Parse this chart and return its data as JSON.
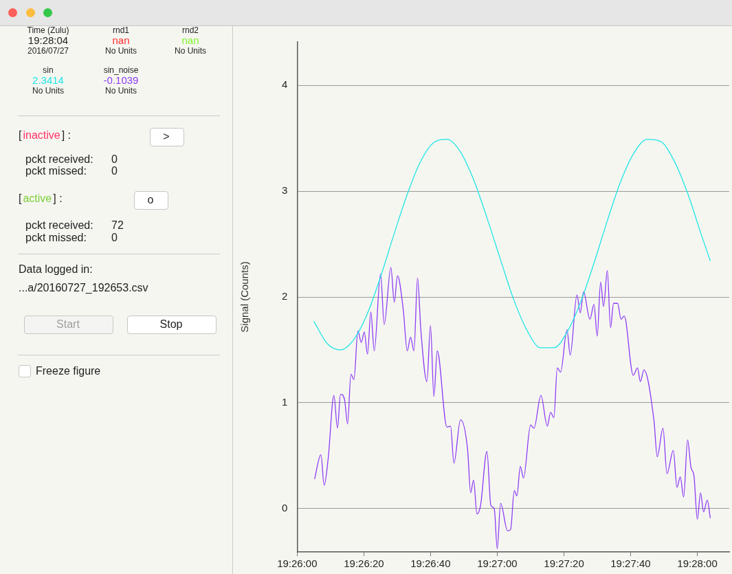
{
  "chart_data": [
    {
      "type": "other",
      "annotations": [
        "Time (Zulu)",
        "19:28:04",
        "2016/07/27",
        "rnd1",
        "nan",
        "No Units",
        "rnd2",
        "nan",
        "No Units",
        "sin",
        "2.3414",
        "No Units",
        "sin_noise",
        "-0.1039",
        "No Units",
        "[",
        "inactive",
        "] :",
        ">",
        "pckt received:",
        "0",
        "pckt missed:",
        "0",
        "[",
        "active",
        "] :",
        "o",
        "pckt received:",
        "72",
        "pckt missed:",
        "0",
        "Data logged in:",
        "...a/20160727_192653.csv",
        "Start",
        "Stop",
        "Freeze figure"
      ],
      "colors": [
        null,
        null,
        null,
        null,
        "#ff2a2a",
        null,
        null,
        "#7cf52a",
        null,
        null,
        "#1ee6e6",
        null,
        null,
        "#8c3cf5",
        null,
        null,
        "#ff3366",
        null,
        null,
        null,
        null,
        null,
        null,
        null,
        "#7ccf3a",
        null,
        null,
        null,
        null,
        null,
        null,
        null,
        null,
        "#a0a0a0",
        null,
        null
      ]
    },
    {
      "type": "line",
      "ylabel": "Signal (Counts)",
      "grid": "y",
      "marker": "none",
      "xlim": [
        19.43333,
        19.46933
      ],
      "ylim": [
        -0.41,
        4.41
      ],
      "xticks": [
        {
          "value": 19.43333,
          "label": "19:26:00"
        },
        {
          "value": 19.43889,
          "label": "19:26:20"
        },
        {
          "value": 19.44444,
          "label": "19:26:40"
        },
        {
          "value": 19.45,
          "label": "19:27:00"
        },
        {
          "value": 19.45556,
          "label": "19:27:20"
        },
        {
          "value": 19.46111,
          "label": "19:27:40"
        },
        {
          "value": 19.46667,
          "label": "19:28:00"
        }
      ],
      "yticks": [
        0,
        1,
        2,
        3,
        4
      ],
      "series": [
        {
          "color": "#1ee6e6",
          "x": [
            19.43472,
            19.43583,
            19.43694,
            19.43806,
            19.43917,
            19.44028,
            19.44139,
            19.4425,
            19.44361,
            19.44472,
            19.44583,
            19.44694,
            19.44806,
            19.44917,
            19.45028,
            19.45139,
            19.4525,
            19.45361,
            19.45472,
            19.45583,
            19.45694,
            19.45806,
            19.45917,
            19.46028,
            19.46139,
            19.4625,
            19.46361,
            19.46472,
            19.46583,
            19.46694,
            19.46775
          ],
          "values": [
            1.77,
            1.56,
            1.5,
            1.6,
            1.84,
            2.19,
            2.59,
            2.97,
            3.28,
            3.46,
            3.49,
            3.37,
            3.1,
            2.74,
            2.35,
            1.97,
            1.68,
            1.52,
            1.52,
            1.67,
            1.95,
            2.32,
            2.72,
            3.09,
            3.36,
            3.49,
            3.47,
            3.29,
            2.99,
            2.61,
            2.34
          ]
        },
        {
          "color": "#8c3cf5",
          "x": [
            19.43478,
            19.43531,
            19.43558,
            19.43592,
            19.43639,
            19.43669,
            19.43694,
            19.43728,
            19.43753,
            19.43781,
            19.43806,
            19.43839,
            19.43867,
            19.43892,
            19.43919,
            19.43947,
            19.43975,
            19.44028,
            19.44058,
            19.44114,
            19.44142,
            19.44169,
            19.44217,
            19.4425,
            19.44278,
            19.44306,
            19.44336,
            19.44364,
            19.44414,
            19.44444,
            19.44472,
            19.445,
            19.44581,
            19.44611,
            19.44639,
            19.44694,
            19.44753,
            19.44778,
            19.44803,
            19.44831,
            19.44861,
            19.44914,
            19.44947,
            19.44975,
            19.45,
            19.45028,
            19.45086,
            19.45111,
            19.45142,
            19.45164,
            19.45192,
            19.45219,
            19.45278,
            19.45306,
            19.45364,
            19.45417,
            19.45444,
            19.45472,
            19.455,
            19.45528,
            19.45581,
            19.45608,
            19.45664,
            19.45692,
            19.45719,
            19.45772,
            19.45806,
            19.45833,
            19.45861,
            19.45886,
            19.45917,
            19.45944,
            19.45969,
            19.46003,
            19.46031,
            19.46058,
            19.46133,
            19.46169,
            19.46192,
            19.46222,
            19.46306,
            19.46333,
            19.46381,
            19.46414,
            19.46467,
            19.46497,
            19.46525,
            19.46553,
            19.46586,
            19.46614,
            19.46639,
            19.46667,
            19.46694,
            19.46719,
            19.4675,
            19.46775
          ],
          "values": [
            0.28,
            0.51,
            0.22,
            0.48,
            1.07,
            0.76,
            1.08,
            1.03,
            0.8,
            1.27,
            1.22,
            1.68,
            1.57,
            1.67,
            1.46,
            1.86,
            1.49,
            2.22,
            1.74,
            2.28,
            1.95,
            2.2,
            1.88,
            1.49,
            1.62,
            1.49,
            2.18,
            1.68,
            1.2,
            1.73,
            1.06,
            1.49,
            0.77,
            0.78,
            0.43,
            0.84,
            0.56,
            0.15,
            0.27,
            -0.05,
            0.03,
            0.54,
            0.03,
            0.0,
            -0.38,
            0.05,
            -0.21,
            -0.2,
            0.17,
            0.12,
            0.4,
            0.29,
            0.79,
            0.76,
            1.07,
            0.78,
            0.91,
            0.86,
            1.33,
            1.29,
            1.69,
            1.45,
            2.02,
            1.85,
            2.05,
            1.79,
            1.93,
            1.63,
            2.14,
            1.91,
            2.25,
            1.71,
            1.94,
            1.94,
            1.79,
            1.82,
            1.26,
            1.33,
            1.2,
            1.31,
            0.83,
            0.49,
            0.76,
            0.33,
            0.55,
            0.2,
            0.3,
            0.11,
            0.65,
            0.39,
            0.31,
            -0.1,
            0.15,
            -0.03,
            0.08,
            -0.09
          ]
        }
      ]
    }
  ]
}
